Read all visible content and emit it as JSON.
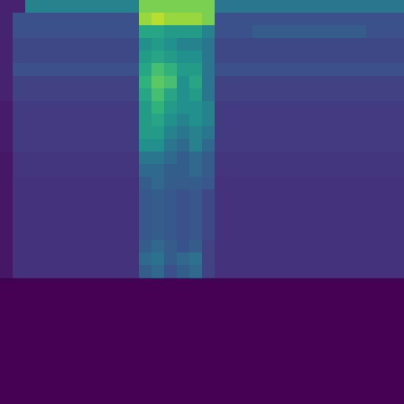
{
  "chart_data": {
    "type": "heatmap",
    "tick_labels": false,
    "zlim": [
      0,
      1
    ],
    "cells": [
      [
        0.1,
        0.1,
        0.45,
        0.45,
        0.45,
        0.45,
        0.45,
        0.45,
        0.45,
        0.45,
        0.45,
        0.8,
        0.8,
        0.8,
        0.8,
        0.8,
        0.8,
        0.4,
        0.4,
        0.4,
        0.4,
        0.4,
        0.4,
        0.4,
        0.4,
        0.4,
        0.4,
        0.4,
        0.4,
        0.4,
        0.4,
        0.4
      ],
      [
        0.1,
        0.25,
        0.25,
        0.25,
        0.25,
        0.25,
        0.25,
        0.25,
        0.25,
        0.25,
        0.25,
        0.85,
        0.9,
        0.85,
        0.85,
        0.85,
        0.8,
        0.25,
        0.25,
        0.25,
        0.25,
        0.25,
        0.25,
        0.25,
        0.25,
        0.25,
        0.25,
        0.25,
        0.25,
        0.25,
        0.25,
        0.25
      ],
      [
        0.1,
        0.25,
        0.25,
        0.25,
        0.25,
        0.25,
        0.25,
        0.25,
        0.25,
        0.25,
        0.25,
        0.6,
        0.6,
        0.55,
        0.55,
        0.55,
        0.45,
        0.25,
        0.25,
        0.25,
        0.3,
        0.3,
        0.3,
        0.3,
        0.3,
        0.3,
        0.3,
        0.3,
        0.3,
        0.25,
        0.25,
        0.25
      ],
      [
        0.1,
        0.22,
        0.22,
        0.22,
        0.22,
        0.22,
        0.22,
        0.22,
        0.22,
        0.22,
        0.22,
        0.5,
        0.55,
        0.5,
        0.45,
        0.45,
        0.4,
        0.22,
        0.22,
        0.22,
        0.22,
        0.22,
        0.22,
        0.22,
        0.22,
        0.22,
        0.22,
        0.22,
        0.22,
        0.22,
        0.22,
        0.22
      ],
      [
        0.1,
        0.22,
        0.22,
        0.22,
        0.22,
        0.22,
        0.22,
        0.22,
        0.22,
        0.22,
        0.22,
        0.55,
        0.6,
        0.55,
        0.5,
        0.5,
        0.4,
        0.22,
        0.22,
        0.22,
        0.22,
        0.22,
        0.22,
        0.22,
        0.22,
        0.22,
        0.22,
        0.22,
        0.22,
        0.22,
        0.22,
        0.22
      ],
      [
        0.1,
        0.25,
        0.25,
        0.25,
        0.25,
        0.25,
        0.25,
        0.25,
        0.25,
        0.25,
        0.25,
        0.6,
        0.7,
        0.65,
        0.55,
        0.55,
        0.4,
        0.25,
        0.25,
        0.25,
        0.25,
        0.25,
        0.25,
        0.25,
        0.25,
        0.25,
        0.25,
        0.25,
        0.25,
        0.25,
        0.25,
        0.25
      ],
      [
        0.1,
        0.2,
        0.2,
        0.2,
        0.2,
        0.2,
        0.2,
        0.2,
        0.2,
        0.2,
        0.2,
        0.65,
        0.75,
        0.7,
        0.5,
        0.6,
        0.4,
        0.2,
        0.2,
        0.2,
        0.2,
        0.2,
        0.2,
        0.2,
        0.2,
        0.2,
        0.2,
        0.2,
        0.2,
        0.2,
        0.2,
        0.2
      ],
      [
        0.1,
        0.2,
        0.2,
        0.2,
        0.2,
        0.2,
        0.2,
        0.2,
        0.2,
        0.2,
        0.2,
        0.6,
        0.7,
        0.6,
        0.5,
        0.55,
        0.4,
        0.2,
        0.2,
        0.2,
        0.2,
        0.2,
        0.2,
        0.2,
        0.2,
        0.2,
        0.2,
        0.2,
        0.2,
        0.2,
        0.2,
        0.2
      ],
      [
        0.08,
        0.18,
        0.18,
        0.18,
        0.18,
        0.18,
        0.18,
        0.18,
        0.18,
        0.18,
        0.18,
        0.55,
        0.65,
        0.55,
        0.5,
        0.5,
        0.45,
        0.18,
        0.18,
        0.18,
        0.18,
        0.18,
        0.18,
        0.18,
        0.18,
        0.18,
        0.18,
        0.18,
        0.18,
        0.18,
        0.18,
        0.18
      ],
      [
        0.08,
        0.18,
        0.18,
        0.18,
        0.18,
        0.18,
        0.18,
        0.18,
        0.18,
        0.18,
        0.18,
        0.55,
        0.6,
        0.5,
        0.45,
        0.5,
        0.45,
        0.18,
        0.18,
        0.18,
        0.18,
        0.18,
        0.18,
        0.18,
        0.18,
        0.18,
        0.18,
        0.18,
        0.18,
        0.18,
        0.18,
        0.18
      ],
      [
        0.08,
        0.18,
        0.18,
        0.18,
        0.18,
        0.18,
        0.18,
        0.18,
        0.18,
        0.18,
        0.18,
        0.55,
        0.55,
        0.45,
        0.4,
        0.45,
        0.4,
        0.18,
        0.18,
        0.18,
        0.18,
        0.18,
        0.18,
        0.18,
        0.18,
        0.18,
        0.18,
        0.18,
        0.18,
        0.18,
        0.18,
        0.18
      ],
      [
        0.08,
        0.18,
        0.18,
        0.18,
        0.18,
        0.18,
        0.18,
        0.18,
        0.18,
        0.18,
        0.18,
        0.5,
        0.5,
        0.4,
        0.35,
        0.45,
        0.35,
        0.18,
        0.18,
        0.18,
        0.18,
        0.18,
        0.18,
        0.18,
        0.18,
        0.18,
        0.18,
        0.18,
        0.18,
        0.18,
        0.18,
        0.18
      ],
      [
        0.06,
        0.16,
        0.16,
        0.16,
        0.16,
        0.16,
        0.16,
        0.16,
        0.16,
        0.16,
        0.16,
        0.4,
        0.4,
        0.35,
        0.3,
        0.35,
        0.3,
        0.16,
        0.16,
        0.16,
        0.16,
        0.16,
        0.16,
        0.16,
        0.16,
        0.16,
        0.16,
        0.16,
        0.16,
        0.16,
        0.16,
        0.16
      ],
      [
        0.06,
        0.16,
        0.16,
        0.16,
        0.16,
        0.16,
        0.16,
        0.16,
        0.16,
        0.16,
        0.16,
        0.35,
        0.35,
        0.3,
        0.3,
        0.35,
        0.3,
        0.16,
        0.16,
        0.16,
        0.16,
        0.16,
        0.16,
        0.16,
        0.16,
        0.16,
        0.16,
        0.16,
        0.16,
        0.16,
        0.16,
        0.16
      ],
      [
        0.06,
        0.15,
        0.15,
        0.15,
        0.15,
        0.15,
        0.15,
        0.15,
        0.15,
        0.15,
        0.15,
        0.3,
        0.35,
        0.3,
        0.3,
        0.3,
        0.28,
        0.15,
        0.15,
        0.15,
        0.15,
        0.15,
        0.15,
        0.15,
        0.15,
        0.15,
        0.15,
        0.15,
        0.15,
        0.15,
        0.15,
        0.15
      ],
      [
        0.06,
        0.15,
        0.15,
        0.15,
        0.15,
        0.15,
        0.15,
        0.15,
        0.15,
        0.15,
        0.15,
        0.28,
        0.3,
        0.28,
        0.25,
        0.28,
        0.22,
        0.15,
        0.15,
        0.15,
        0.15,
        0.15,
        0.15,
        0.15,
        0.15,
        0.15,
        0.15,
        0.15,
        0.15,
        0.15,
        0.15,
        0.15
      ],
      [
        0.06,
        0.15,
        0.15,
        0.15,
        0.15,
        0.15,
        0.15,
        0.15,
        0.15,
        0.15,
        0.15,
        0.28,
        0.3,
        0.28,
        0.25,
        0.28,
        0.22,
        0.15,
        0.15,
        0.15,
        0.15,
        0.15,
        0.15,
        0.15,
        0.15,
        0.15,
        0.15,
        0.15,
        0.15,
        0.15,
        0.15,
        0.15
      ],
      [
        0.06,
        0.15,
        0.15,
        0.15,
        0.15,
        0.15,
        0.15,
        0.15,
        0.15,
        0.15,
        0.15,
        0.28,
        0.3,
        0.28,
        0.25,
        0.28,
        0.22,
        0.15,
        0.15,
        0.15,
        0.15,
        0.15,
        0.15,
        0.15,
        0.15,
        0.15,
        0.15,
        0.15,
        0.15,
        0.15,
        0.15,
        0.15
      ],
      [
        0.06,
        0.15,
        0.15,
        0.15,
        0.15,
        0.15,
        0.15,
        0.15,
        0.15,
        0.15,
        0.15,
        0.28,
        0.3,
        0.28,
        0.25,
        0.28,
        0.22,
        0.15,
        0.15,
        0.15,
        0.15,
        0.15,
        0.15,
        0.15,
        0.15,
        0.15,
        0.15,
        0.15,
        0.15,
        0.15,
        0.15,
        0.15
      ],
      [
        0.06,
        0.15,
        0.15,
        0.15,
        0.15,
        0.15,
        0.15,
        0.15,
        0.15,
        0.15,
        0.15,
        0.3,
        0.35,
        0.3,
        0.25,
        0.3,
        0.2,
        0.15,
        0.15,
        0.15,
        0.15,
        0.15,
        0.15,
        0.15,
        0.15,
        0.15,
        0.15,
        0.15,
        0.15,
        0.15,
        0.15,
        0.15
      ],
      [
        0.06,
        0.15,
        0.15,
        0.15,
        0.15,
        0.15,
        0.15,
        0.15,
        0.15,
        0.15,
        0.15,
        0.35,
        0.38,
        0.3,
        0.35,
        0.38,
        0.2,
        0.15,
        0.15,
        0.15,
        0.15,
        0.15,
        0.15,
        0.15,
        0.15,
        0.15,
        0.15,
        0.15,
        0.15,
        0.15,
        0.15,
        0.15
      ],
      [
        0.06,
        0.15,
        0.15,
        0.15,
        0.15,
        0.15,
        0.15,
        0.15,
        0.15,
        0.15,
        0.15,
        0.3,
        0.35,
        0.25,
        0.3,
        0.35,
        0.2,
        0.15,
        0.15,
        0.15,
        0.15,
        0.15,
        0.15,
        0.15,
        0.15,
        0.15,
        0.15,
        0.15,
        0.15,
        0.15,
        0.15,
        0.15
      ]
    ]
  }
}
